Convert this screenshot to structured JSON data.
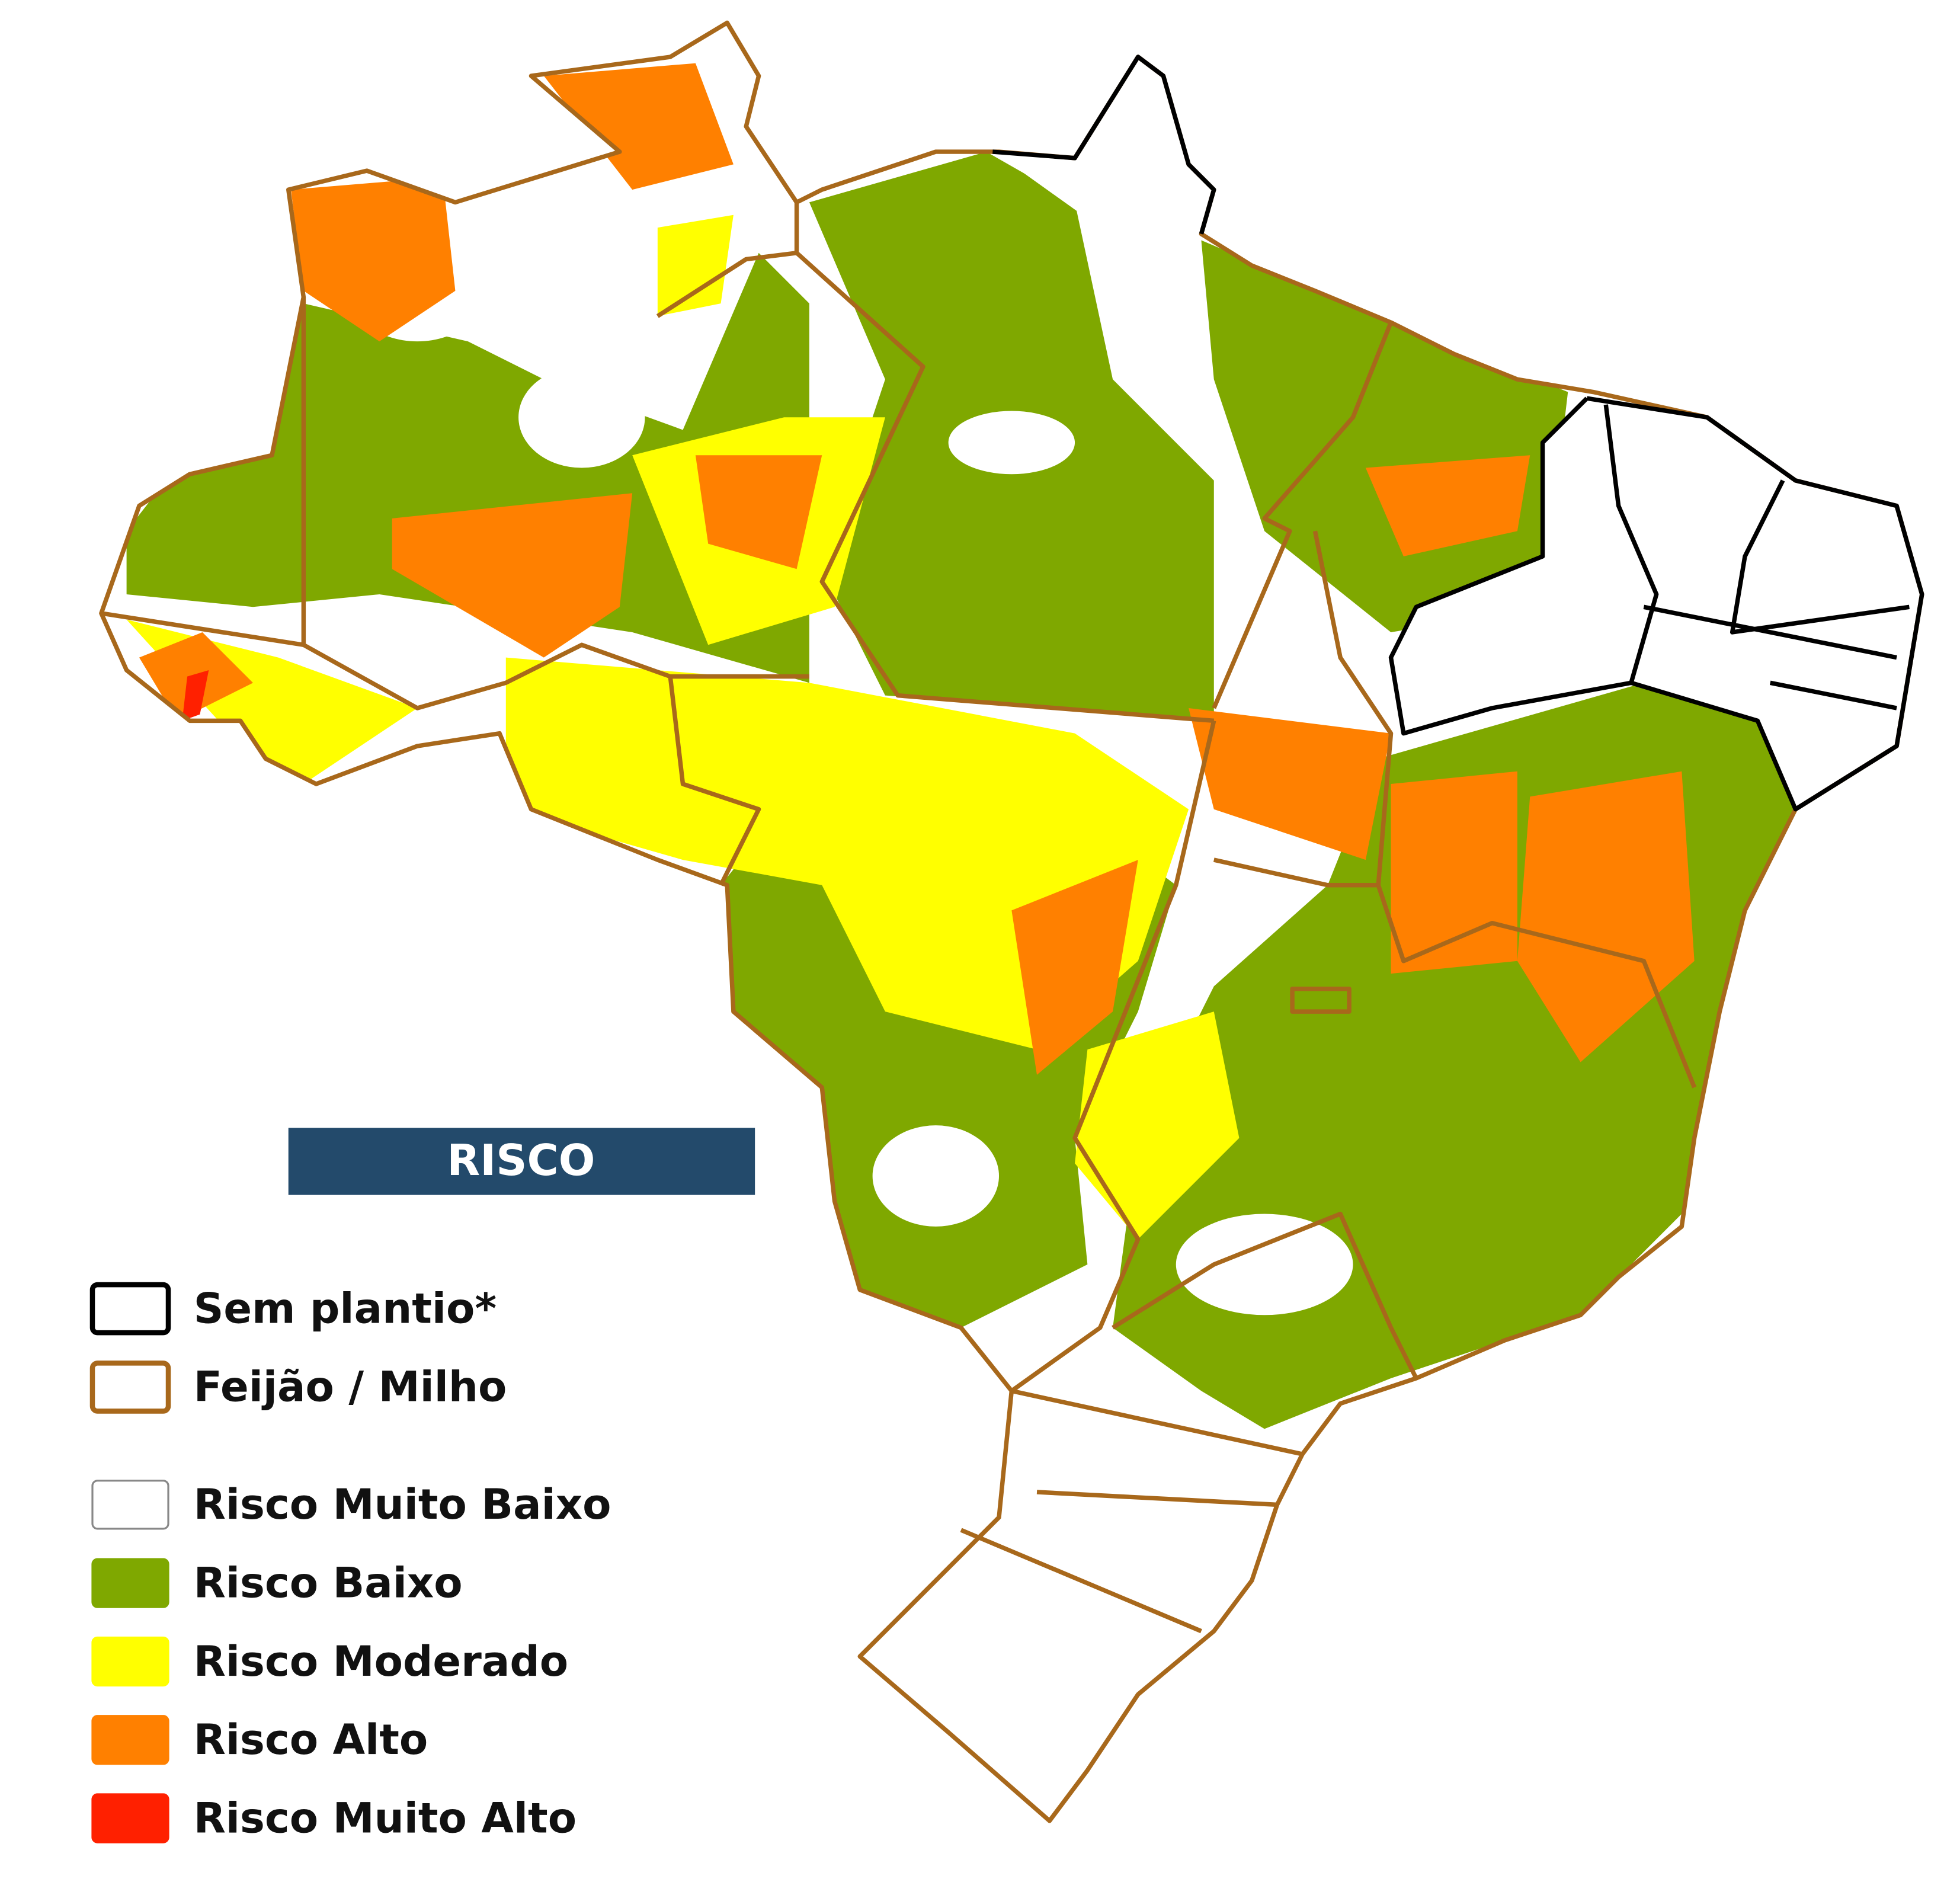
{
  "legend": {
    "title": "RISCO",
    "borders": [
      {
        "label": "Sem plantio*",
        "color": "#000000"
      },
      {
        "label": "Feijão / Milho",
        "color": "#a8681b"
      }
    ],
    "classes": [
      {
        "label": "Risco Muito Baixo",
        "color": "#ffffff"
      },
      {
        "label": "Risco Baixo",
        "color": "#7fa800"
      },
      {
        "label": "Risco Moderado",
        "color": "#ffff00"
      },
      {
        "label": "Risco Alto",
        "color": "#ff8000"
      },
      {
        "label": "Risco Muito Alto",
        "color": "#ff2000"
      }
    ]
  }
}
